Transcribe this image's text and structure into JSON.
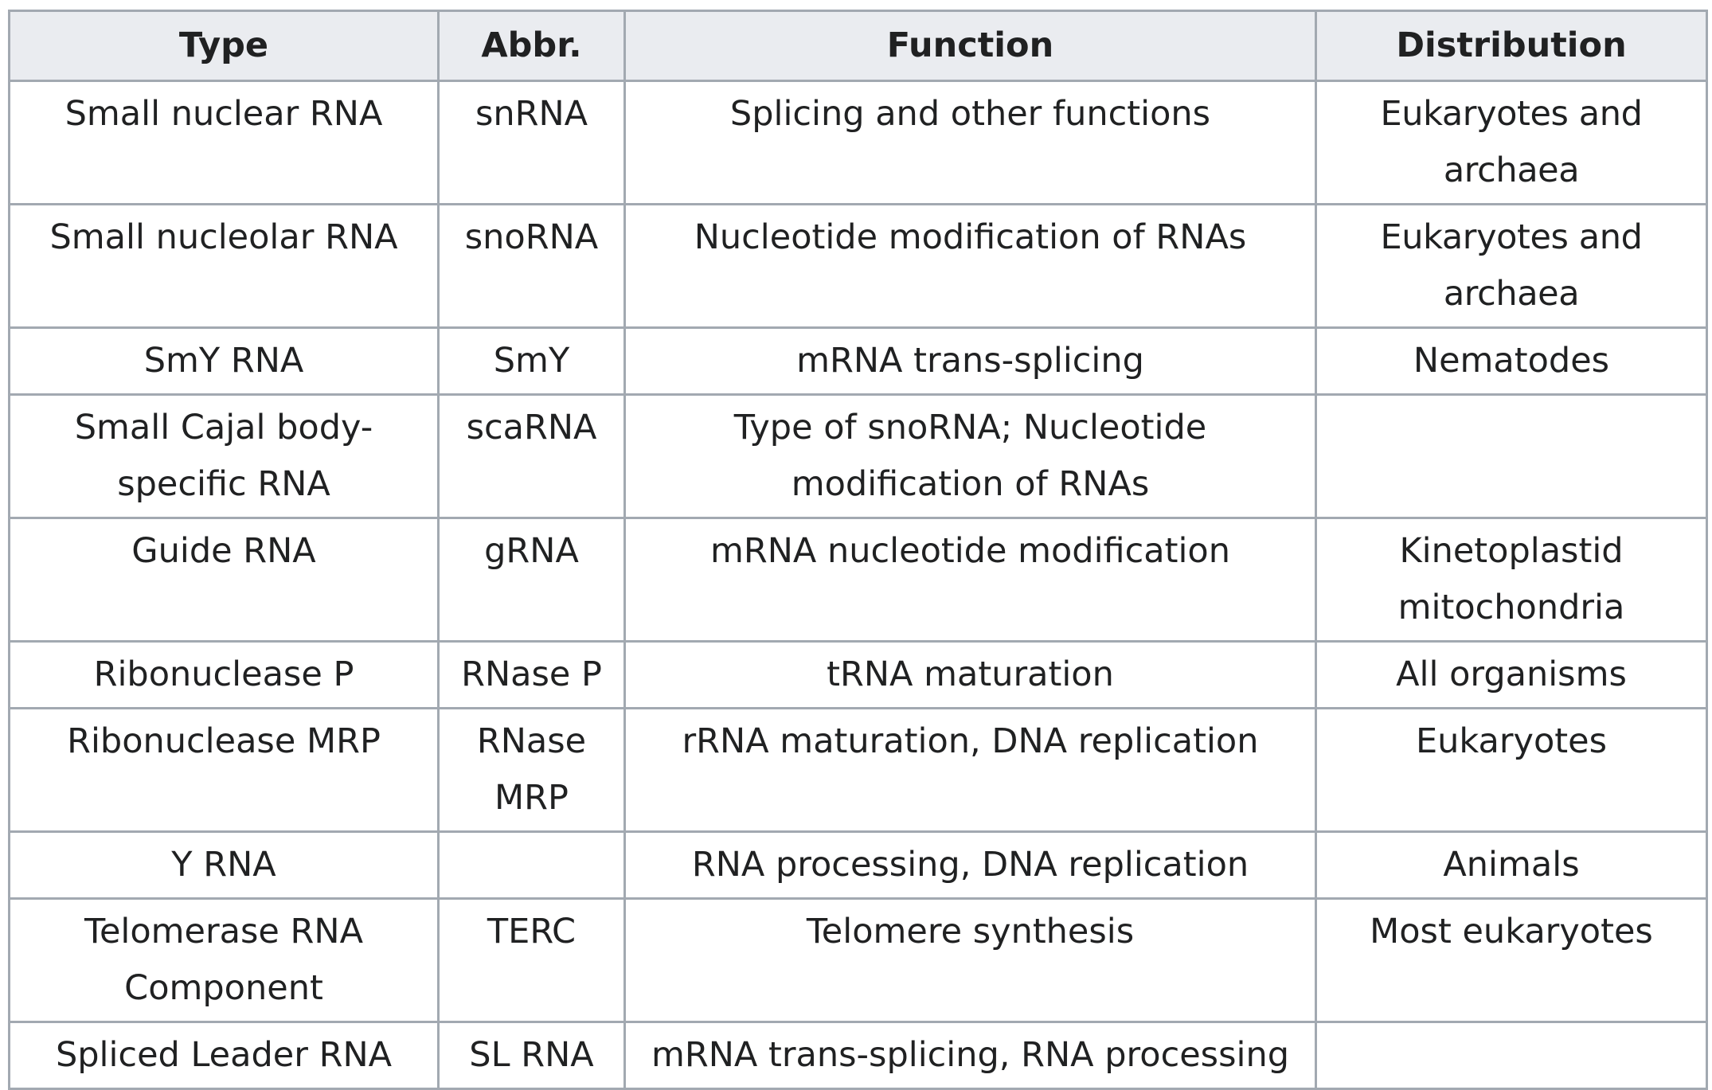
{
  "table": {
    "headers": [
      "Type",
      "Abbr.",
      "Function",
      "Distribution"
    ],
    "rows": [
      [
        "Small nuclear RNA",
        "snRNA",
        "Splicing and other functions",
        "Eukaryotes and archaea"
      ],
      [
        "Small nucleolar RNA",
        "snoRNA",
        "Nucleotide modification of RNAs",
        "Eukaryotes and archaea"
      ],
      [
        "SmY RNA",
        "SmY",
        "mRNA trans-splicing",
        "Nematodes"
      ],
      [
        "Small Cajal body-specific RNA",
        "scaRNA",
        "Type of snoRNA; Nucleotide modification of RNAs",
        ""
      ],
      [
        "Guide RNA",
        "gRNA",
        "mRNA nucleotide modification",
        "Kinetoplastid mitochondria"
      ],
      [
        "Ribonuclease P",
        "RNase P",
        "tRNA maturation",
        "All organisms"
      ],
      [
        "Ribonuclease MRP",
        "RNase MRP",
        "rRNA maturation, DNA replication",
        "Eukaryotes"
      ],
      [
        "Y RNA",
        "",
        "RNA processing, DNA replication",
        "Animals"
      ],
      [
        "Telomerase RNA Component",
        "TERC",
        "Telomere synthesis",
        "Most eukaryotes"
      ],
      [
        "Spliced Leader RNA",
        "SL RNA",
        "mRNA trans-splicing, RNA processing",
        ""
      ]
    ]
  }
}
